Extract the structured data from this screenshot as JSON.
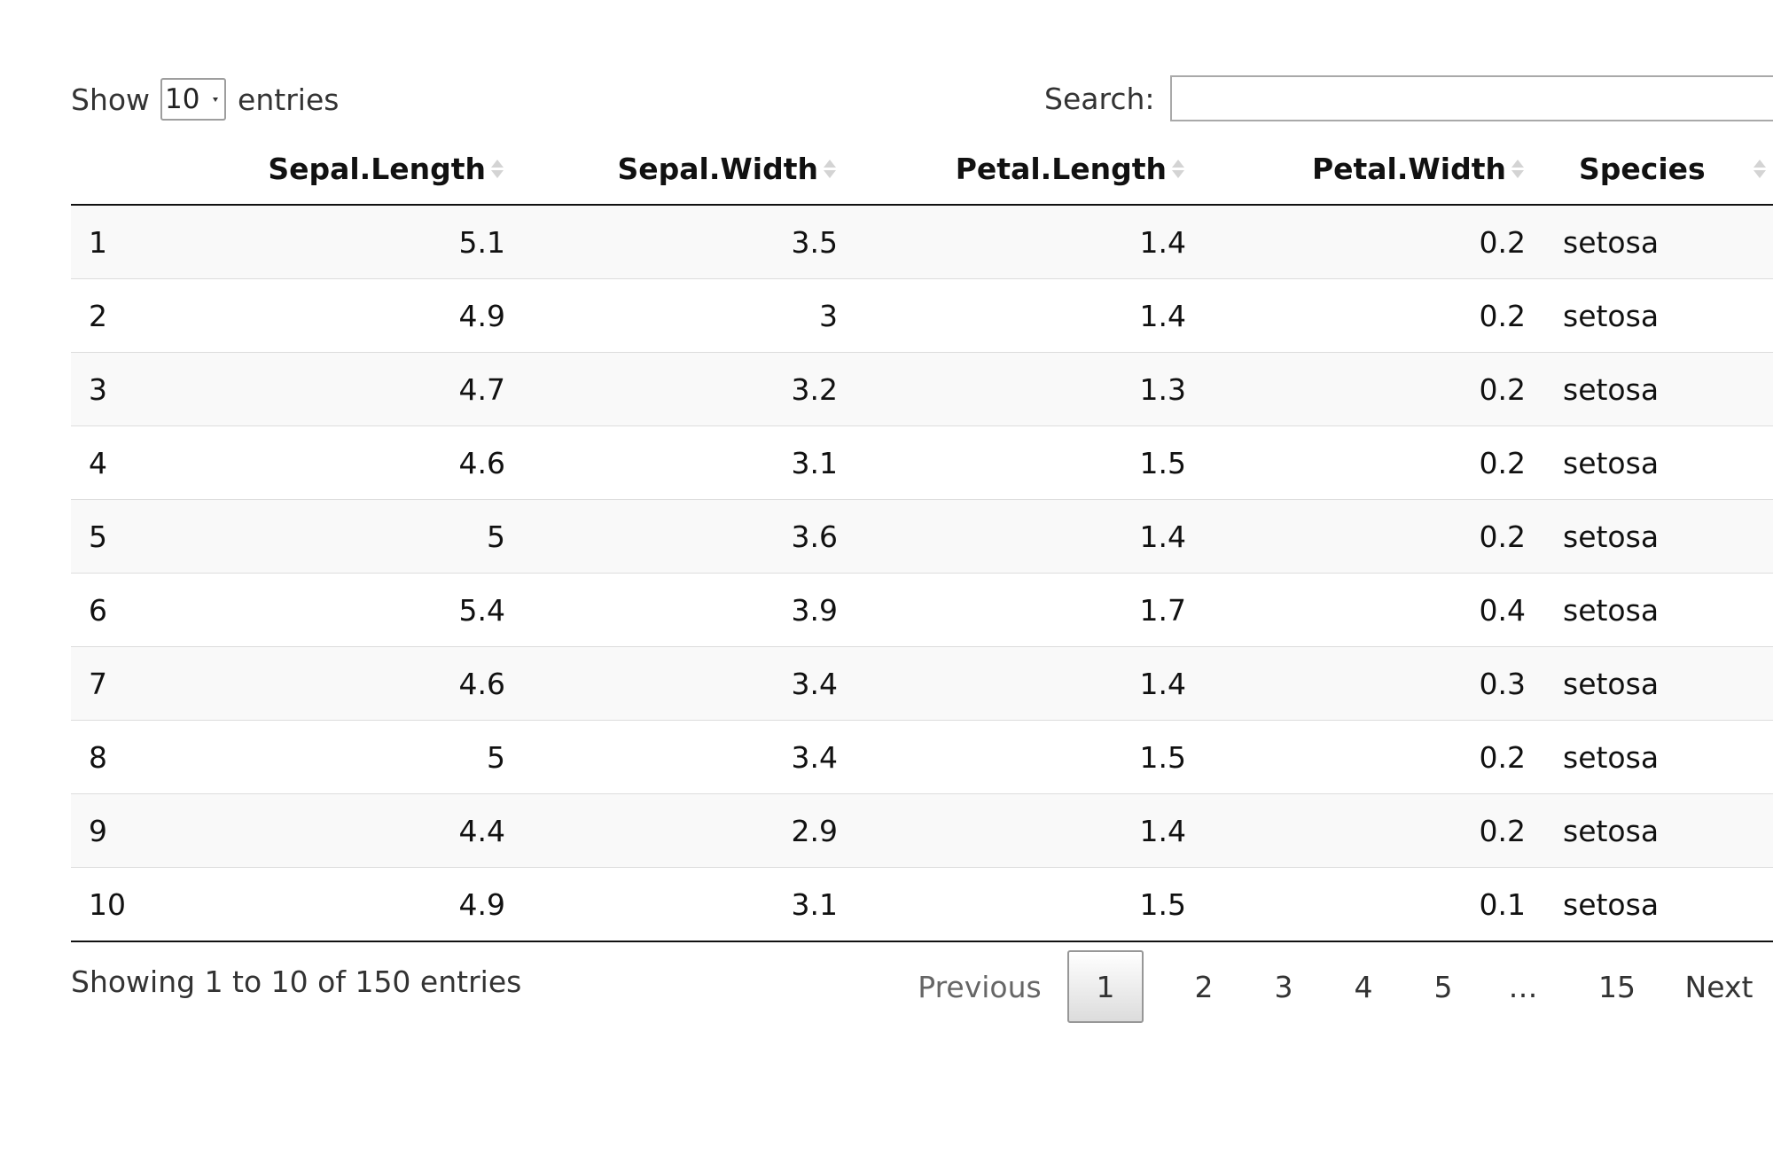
{
  "controls": {
    "show_label": "Show",
    "page_length": "10",
    "entries_label": "entries",
    "search_label": "Search:",
    "search_value": ""
  },
  "table": {
    "columns": [
      "",
      "Sepal.Length",
      "Sepal.Width",
      "Petal.Length",
      "Petal.Width",
      "Species"
    ],
    "rows": [
      [
        "1",
        "5.1",
        "3.5",
        "1.4",
        "0.2",
        "setosa"
      ],
      [
        "2",
        "4.9",
        "3",
        "1.4",
        "0.2",
        "setosa"
      ],
      [
        "3",
        "4.7",
        "3.2",
        "1.3",
        "0.2",
        "setosa"
      ],
      [
        "4",
        "4.6",
        "3.1",
        "1.5",
        "0.2",
        "setosa"
      ],
      [
        "5",
        "5",
        "3.6",
        "1.4",
        "0.2",
        "setosa"
      ],
      [
        "6",
        "5.4",
        "3.9",
        "1.7",
        "0.4",
        "setosa"
      ],
      [
        "7",
        "4.6",
        "3.4",
        "1.4",
        "0.3",
        "setosa"
      ],
      [
        "8",
        "5",
        "3.4",
        "1.5",
        "0.2",
        "setosa"
      ],
      [
        "9",
        "4.4",
        "2.9",
        "1.4",
        "0.2",
        "setosa"
      ],
      [
        "10",
        "4.9",
        "3.1",
        "1.5",
        "0.1",
        "setosa"
      ]
    ]
  },
  "footer": {
    "info": "Showing 1 to 10 of 150 entries",
    "previous": "Previous",
    "pages": [
      "1",
      "2",
      "3",
      "4",
      "5"
    ],
    "ellipsis": "…",
    "last_page": "15",
    "next": "Next"
  },
  "icons": {
    "sort": "sort-both-icon",
    "select": "chevron-down-icon"
  }
}
